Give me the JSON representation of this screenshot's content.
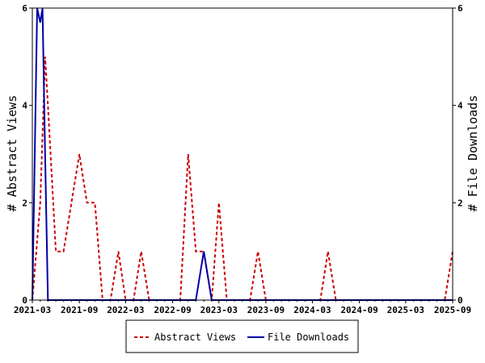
{
  "chart_data": {
    "type": "line",
    "title": "",
    "xlabel": "",
    "ylabel_left": "# Abstract Views",
    "ylabel_right": "# File Downloads",
    "x_range": [
      "2021-03",
      "2025-09"
    ],
    "x_ticks": [
      "2021-03",
      "2021-09",
      "2022-03",
      "2022-09",
      "2023-03",
      "2023-09",
      "2024-03",
      "2024-09",
      "2025-03",
      "2025-09"
    ],
    "y_left": {
      "min": 0,
      "max": 6,
      "ticks": [
        "0",
        "2",
        "4",
        "6"
      ]
    },
    "y_right": {
      "min": 0,
      "max": 6,
      "ticks": [
        "0",
        "2",
        "4",
        "6"
      ]
    },
    "grid": false,
    "legend_position": "bottom-center",
    "series": [
      {
        "name": "Abstract Views",
        "color": "#cc0000",
        "style": "dashed",
        "axis": "left",
        "points": [
          [
            "2021-03",
            0
          ],
          [
            "2021-04",
            2
          ],
          [
            "2021-04-20",
            5
          ],
          [
            "2021-05",
            4
          ],
          [
            "2021-06",
            1
          ],
          [
            "2021-07",
            1
          ],
          [
            "2021-08",
            2
          ],
          [
            "2021-09",
            3
          ],
          [
            "2021-10",
            2
          ],
          [
            "2021-11",
            2
          ],
          [
            "2021-12",
            0
          ],
          [
            "2022-01",
            0
          ],
          [
            "2022-02",
            1
          ],
          [
            "2022-03",
            0
          ],
          [
            "2022-04",
            0
          ],
          [
            "2022-05",
            1
          ],
          [
            "2022-06",
            0
          ],
          [
            "2022-07",
            0
          ],
          [
            "2022-08",
            0
          ],
          [
            "2022-09",
            0
          ],
          [
            "2022-10",
            0
          ],
          [
            "2022-11",
            3
          ],
          [
            "2022-12",
            1
          ],
          [
            "2023-01",
            1
          ],
          [
            "2023-02",
            0
          ],
          [
            "2023-03",
            2
          ],
          [
            "2023-04",
            0
          ],
          [
            "2023-05",
            0
          ],
          [
            "2023-06",
            0
          ],
          [
            "2023-07",
            0
          ],
          [
            "2023-08",
            1
          ],
          [
            "2023-09",
            0
          ],
          [
            "2023-10",
            0
          ],
          [
            "2023-11",
            0
          ],
          [
            "2023-12",
            0
          ],
          [
            "2024-01",
            0
          ],
          [
            "2024-02",
            0
          ],
          [
            "2024-03",
            0
          ],
          [
            "2024-04",
            0
          ],
          [
            "2024-05",
            1
          ],
          [
            "2024-06",
            0
          ],
          [
            "2024-07",
            0
          ],
          [
            "2024-08",
            0
          ],
          [
            "2024-09",
            0
          ],
          [
            "2024-10",
            0
          ],
          [
            "2024-11",
            0
          ],
          [
            "2024-12",
            0
          ],
          [
            "2025-01",
            0
          ],
          [
            "2025-02",
            0
          ],
          [
            "2025-03",
            0
          ],
          [
            "2025-04",
            0
          ],
          [
            "2025-05",
            0
          ],
          [
            "2025-06",
            0
          ],
          [
            "2025-07",
            0
          ],
          [
            "2025-08",
            0
          ],
          [
            "2025-09",
            1
          ]
        ]
      },
      {
        "name": "File Downloads",
        "color": "#0000aa",
        "style": "solid",
        "axis": "right",
        "points": [
          [
            "2021-03",
            0
          ],
          [
            "2021-03-20",
            6
          ],
          [
            "2021-04",
            5.7
          ],
          [
            "2021-04-10",
            6
          ],
          [
            "2021-04-20",
            3
          ],
          [
            "2021-05-01",
            0
          ],
          [
            "2022-12-01",
            0
          ],
          [
            "2023-01-01",
            1
          ],
          [
            "2023-02-01",
            0
          ],
          [
            "2025-09",
            0
          ]
        ]
      }
    ]
  }
}
